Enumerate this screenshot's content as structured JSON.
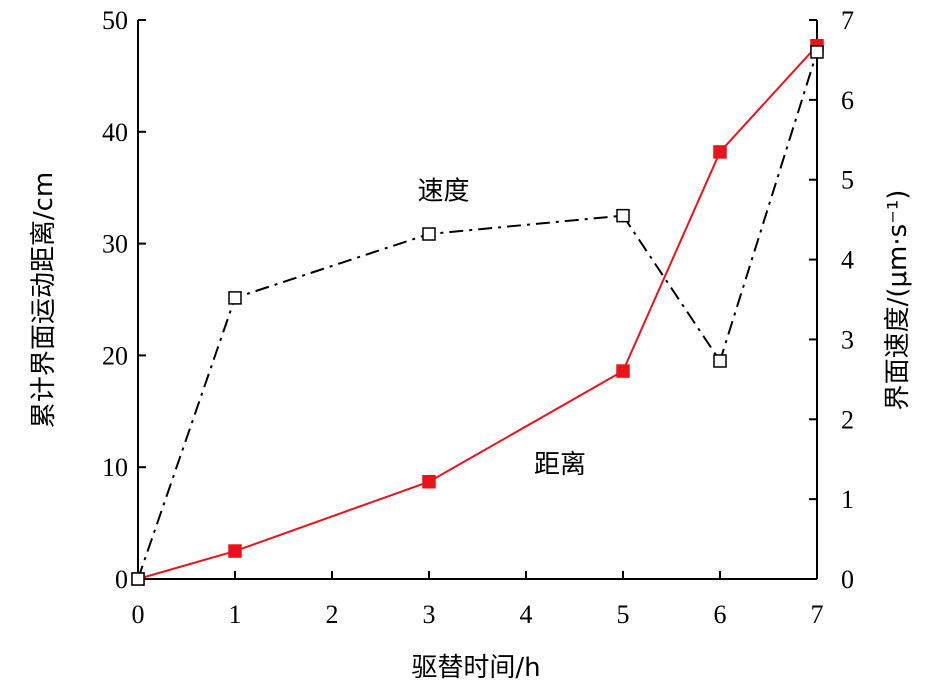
{
  "chart_data": {
    "type": "line",
    "xlabel": "驱替时间/h",
    "ylabel_left": "累计界面运动距离/cm",
    "ylabel_right": "界面速度/(μm·s⁻¹)",
    "xlim": [
      0,
      7
    ],
    "ylim_left": [
      0,
      50
    ],
    "ylim_right": [
      0,
      7
    ],
    "x_ticks": [
      0,
      1,
      2,
      3,
      4,
      5,
      6,
      7
    ],
    "y_ticks_left": [
      0,
      10,
      20,
      30,
      40,
      50
    ],
    "y_ticks_right": [
      0,
      1,
      2,
      3,
      4,
      5,
      6,
      7
    ],
    "grid": false,
    "series": [
      {
        "name": "距离",
        "axis": "left",
        "x": [
          0,
          1,
          3,
          5,
          6,
          7
        ],
        "values": [
          0,
          2.5,
          8.7,
          18.6,
          38.2,
          47.7
        ],
        "color": "#e8141c",
        "line_style": "solid",
        "marker": "filled-square"
      },
      {
        "name": "速度",
        "axis": "right",
        "x": [
          0,
          1,
          3,
          5,
          6,
          7
        ],
        "values": [
          0,
          3.52,
          4.32,
          4.55,
          2.73,
          6.6
        ],
        "color": "#000000",
        "line_style": "dash-dot",
        "marker": "open-square"
      }
    ],
    "annotations": [
      {
        "text": "速度",
        "x": 3.15,
        "y": 4.75,
        "axis": "right"
      },
      {
        "text": "距离",
        "x": 4.35,
        "y": 9.5,
        "axis": "left"
      }
    ]
  }
}
